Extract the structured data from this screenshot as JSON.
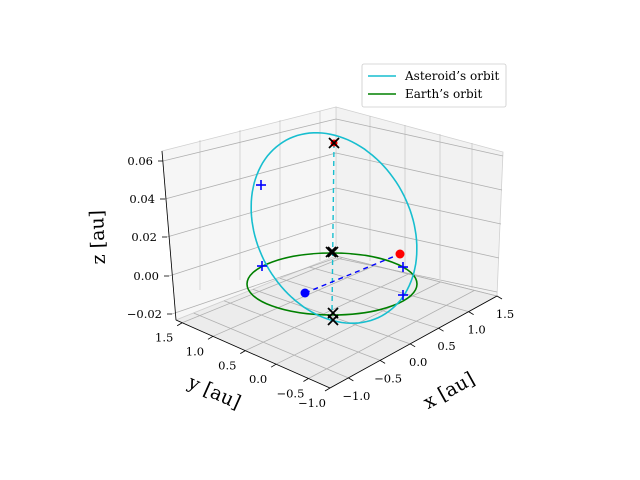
{
  "chart_data": {
    "type": "line",
    "projection": "3d",
    "xlabel": "x [au]",
    "ylabel": "y [au]",
    "zlabel": "z [au]",
    "x_ticks": [
      "−1.0",
      "−0.5",
      "0.0",
      "0.5",
      "1.0",
      "1.5"
    ],
    "y_ticks": [
      "1.5",
      "1.0",
      "0.5",
      "0.0",
      "−0.5",
      "−1.0"
    ],
    "z_ticks": [
      "0.06",
      "0.04",
      "0.02",
      "0.00",
      "−0.02"
    ],
    "xlim": [
      -1.2,
      1.6
    ],
    "ylim": [
      -1.2,
      1.6
    ],
    "zlim": [
      -0.025,
      0.065
    ],
    "grid": true,
    "legend_position": "top-right",
    "series": [
      {
        "name": "Asteroid’s orbit",
        "color": "#17becf",
        "shape": "tilted ellipse",
        "semi_major_au": 1.15,
        "inclination_max_z": 0.06
      },
      {
        "name": "Earth’s orbit",
        "color": "#008000",
        "shape": "circle",
        "radius_au": 1.0
      }
    ],
    "markers": {
      "asteroid_position": {
        "color": "#ff0000"
      },
      "earth_position": {
        "color": "#0000ff"
      },
      "plus_markers_color": "#0000ff",
      "x_markers_color": "#000000"
    }
  }
}
